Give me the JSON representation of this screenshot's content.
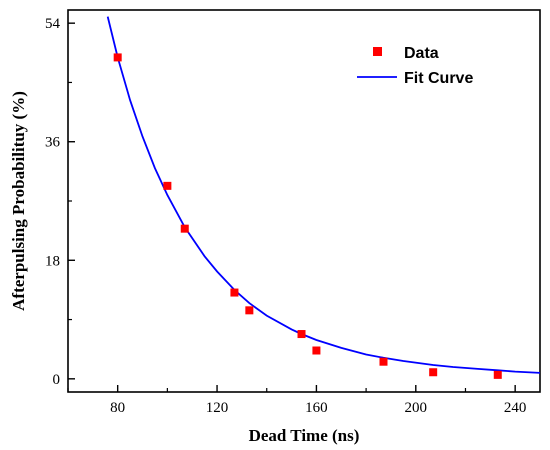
{
  "chart_data": {
    "type": "scatter",
    "xlabel": "Dead Time (ns)",
    "ylabel": "Afterpulsing Probabilituy (%)",
    "xlim": [
      60,
      250
    ],
    "ylim": [
      -2,
      56
    ],
    "x_ticks": [
      80,
      120,
      160,
      200,
      240
    ],
    "y_ticks": [
      0,
      18,
      36,
      54
    ],
    "grid": false,
    "legend_position": "top-right",
    "series": [
      {
        "name": "Data",
        "kind": "points",
        "marker": "square",
        "color": "#ff0000",
        "x": [
          80,
          100,
          107,
          127,
          133,
          154,
          160,
          187,
          207,
          233
        ],
        "y": [
          48.8,
          29.3,
          22.8,
          13.1,
          10.4,
          6.8,
          4.3,
          2.6,
          1.0,
          0.6
        ]
      },
      {
        "name": "Fit Curve",
        "kind": "line",
        "color": "#0000ff",
        "x": [
          76,
          80,
          85,
          90,
          95,
          100,
          107,
          115,
          120,
          127,
          133,
          140,
          150,
          154,
          160,
          170,
          180,
          187,
          195,
          207,
          215,
          225,
          233,
          240,
          250
        ],
        "y": [
          55.0,
          48.8,
          42.3,
          36.8,
          32.0,
          27.9,
          23.0,
          18.6,
          16.3,
          13.5,
          11.5,
          9.6,
          7.5,
          6.8,
          5.9,
          4.7,
          3.7,
          3.2,
          2.7,
          2.1,
          1.8,
          1.5,
          1.3,
          1.1,
          0.9
        ]
      }
    ]
  }
}
